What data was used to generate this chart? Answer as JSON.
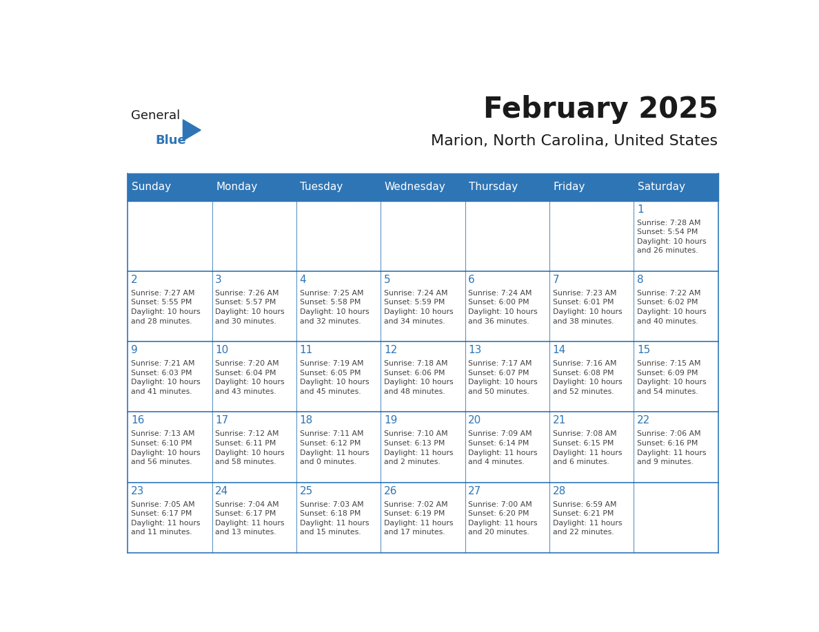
{
  "title": "February 2025",
  "subtitle": "Marion, North Carolina, United States",
  "header_bg_color": "#2E75B6",
  "header_text_color": "#FFFFFF",
  "cell_bg_color": "#FFFFFF",
  "border_color": "#2E75B6",
  "day_number_color": "#2E75B6",
  "cell_text_color": "#404040",
  "days_of_week": [
    "Sunday",
    "Monday",
    "Tuesday",
    "Wednesday",
    "Thursday",
    "Friday",
    "Saturday"
  ],
  "calendar_data": [
    [
      null,
      null,
      null,
      null,
      null,
      null,
      {
        "day": 1,
        "sunrise": "7:28 AM",
        "sunset": "5:54 PM",
        "daylight": "10 hours\nand 26 minutes."
      }
    ],
    [
      {
        "day": 2,
        "sunrise": "7:27 AM",
        "sunset": "5:55 PM",
        "daylight": "10 hours\nand 28 minutes."
      },
      {
        "day": 3,
        "sunrise": "7:26 AM",
        "sunset": "5:57 PM",
        "daylight": "10 hours\nand 30 minutes."
      },
      {
        "day": 4,
        "sunrise": "7:25 AM",
        "sunset": "5:58 PM",
        "daylight": "10 hours\nand 32 minutes."
      },
      {
        "day": 5,
        "sunrise": "7:24 AM",
        "sunset": "5:59 PM",
        "daylight": "10 hours\nand 34 minutes."
      },
      {
        "day": 6,
        "sunrise": "7:24 AM",
        "sunset": "6:00 PM",
        "daylight": "10 hours\nand 36 minutes."
      },
      {
        "day": 7,
        "sunrise": "7:23 AM",
        "sunset": "6:01 PM",
        "daylight": "10 hours\nand 38 minutes."
      },
      {
        "day": 8,
        "sunrise": "7:22 AM",
        "sunset": "6:02 PM",
        "daylight": "10 hours\nand 40 minutes."
      }
    ],
    [
      {
        "day": 9,
        "sunrise": "7:21 AM",
        "sunset": "6:03 PM",
        "daylight": "10 hours\nand 41 minutes."
      },
      {
        "day": 10,
        "sunrise": "7:20 AM",
        "sunset": "6:04 PM",
        "daylight": "10 hours\nand 43 minutes."
      },
      {
        "day": 11,
        "sunrise": "7:19 AM",
        "sunset": "6:05 PM",
        "daylight": "10 hours\nand 45 minutes."
      },
      {
        "day": 12,
        "sunrise": "7:18 AM",
        "sunset": "6:06 PM",
        "daylight": "10 hours\nand 48 minutes."
      },
      {
        "day": 13,
        "sunrise": "7:17 AM",
        "sunset": "6:07 PM",
        "daylight": "10 hours\nand 50 minutes."
      },
      {
        "day": 14,
        "sunrise": "7:16 AM",
        "sunset": "6:08 PM",
        "daylight": "10 hours\nand 52 minutes."
      },
      {
        "day": 15,
        "sunrise": "7:15 AM",
        "sunset": "6:09 PM",
        "daylight": "10 hours\nand 54 minutes."
      }
    ],
    [
      {
        "day": 16,
        "sunrise": "7:13 AM",
        "sunset": "6:10 PM",
        "daylight": "10 hours\nand 56 minutes."
      },
      {
        "day": 17,
        "sunrise": "7:12 AM",
        "sunset": "6:11 PM",
        "daylight": "10 hours\nand 58 minutes."
      },
      {
        "day": 18,
        "sunrise": "7:11 AM",
        "sunset": "6:12 PM",
        "daylight": "11 hours\nand 0 minutes."
      },
      {
        "day": 19,
        "sunrise": "7:10 AM",
        "sunset": "6:13 PM",
        "daylight": "11 hours\nand 2 minutes."
      },
      {
        "day": 20,
        "sunrise": "7:09 AM",
        "sunset": "6:14 PM",
        "daylight": "11 hours\nand 4 minutes."
      },
      {
        "day": 21,
        "sunrise": "7:08 AM",
        "sunset": "6:15 PM",
        "daylight": "11 hours\nand 6 minutes."
      },
      {
        "day": 22,
        "sunrise": "7:06 AM",
        "sunset": "6:16 PM",
        "daylight": "11 hours\nand 9 minutes."
      }
    ],
    [
      {
        "day": 23,
        "sunrise": "7:05 AM",
        "sunset": "6:17 PM",
        "daylight": "11 hours\nand 11 minutes."
      },
      {
        "day": 24,
        "sunrise": "7:04 AM",
        "sunset": "6:17 PM",
        "daylight": "11 hours\nand 13 minutes."
      },
      {
        "day": 25,
        "sunrise": "7:03 AM",
        "sunset": "6:18 PM",
        "daylight": "11 hours\nand 15 minutes."
      },
      {
        "day": 26,
        "sunrise": "7:02 AM",
        "sunset": "6:19 PM",
        "daylight": "11 hours\nand 17 minutes."
      },
      {
        "day": 27,
        "sunrise": "7:00 AM",
        "sunset": "6:20 PM",
        "daylight": "11 hours\nand 20 minutes."
      },
      {
        "day": 28,
        "sunrise": "6:59 AM",
        "sunset": "6:21 PM",
        "daylight": "11 hours\nand 22 minutes."
      },
      null
    ]
  ],
  "logo_text_general": "General",
  "logo_text_blue": "Blue",
  "logo_triangle_color": "#2E75B6"
}
